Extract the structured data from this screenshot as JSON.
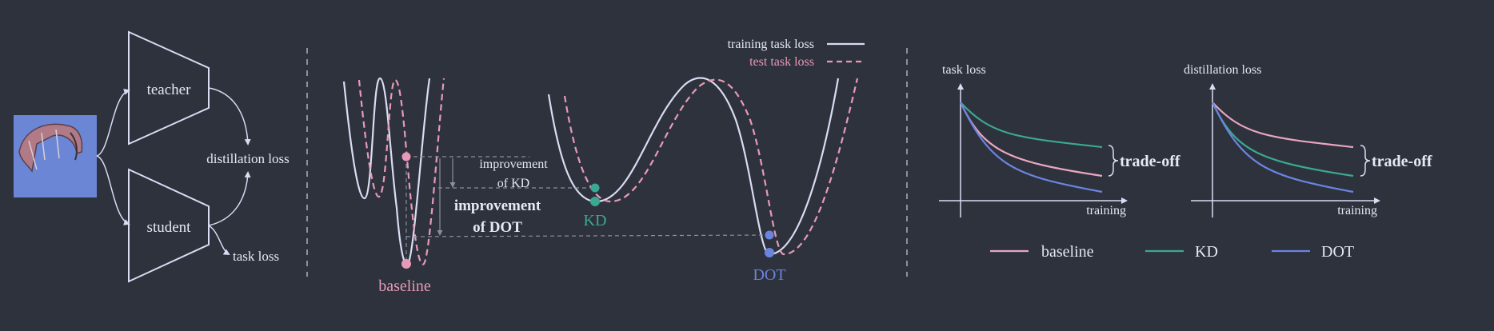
{
  "colors": {
    "background": "#2e323d",
    "line": "#d9dcf2",
    "pink": "#e79ab8",
    "teal": "#3aa892",
    "blue": "#6a84e0",
    "gray": "#8b8f9c",
    "text": "#e6e8f2"
  },
  "left_panel": {
    "teacher_label": "teacher",
    "student_label": "student",
    "distillation_loss_label": "distillation loss",
    "task_loss_label": "task loss",
    "input_image": "kite-image"
  },
  "middle_panel": {
    "legend_train": "training task loss",
    "legend_test": "test task loss",
    "improvement_kd_line1": "improvement",
    "improvement_kd_line2": "of KD",
    "improvement_dot_line1": "improvement",
    "improvement_dot_line2": "of DOT",
    "label_baseline": "baseline",
    "label_kd": "KD",
    "label_dot": "DOT"
  },
  "right_panel": {
    "chart1_ylabel": "task loss",
    "chart1_xlabel": "training",
    "chart1_annotation": "trade-off",
    "chart2_ylabel": "distillation loss",
    "chart2_xlabel": "training",
    "chart2_annotation": "trade-off",
    "legend_baseline": "baseline",
    "legend_kd": "KD",
    "legend_dot": "DOT"
  }
}
